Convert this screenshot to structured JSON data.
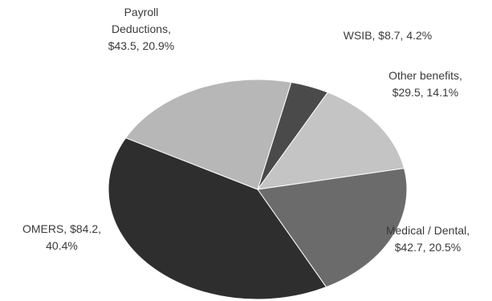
{
  "chart_data": {
    "type": "pie",
    "title": "",
    "slices": [
      {
        "name": "Payroll Deductions",
        "value": 43.5,
        "percent": "20.9%",
        "color": "#b7b7b7",
        "label_lines": [
          "Payroll",
          "Deductions,",
          "$43.5, 20.9%"
        ]
      },
      {
        "name": "WSIB",
        "value": 8.7,
        "percent": "4.2%",
        "color": "#4a4a4a",
        "label_lines": [
          "WSIB, $8.7, 4.2%"
        ]
      },
      {
        "name": "Other benefits",
        "value": 29.5,
        "percent": "14.1%",
        "color": "#c4c4c4",
        "label_lines": [
          "Other benefits,",
          "$29.5, 14.1%"
        ]
      },
      {
        "name": "Medical / Dental",
        "value": 42.7,
        "percent": "20.5%",
        "color": "#6b6b6b",
        "label_lines": [
          "Medical / Dental,",
          "$42.7, 20.5%"
        ]
      },
      {
        "name": "OMERS",
        "value": 84.2,
        "percent": "40.4%",
        "color": "#2e2e2e",
        "label_lines": [
          "OMERS, $84.2,",
          "40.4%"
        ]
      }
    ]
  }
}
